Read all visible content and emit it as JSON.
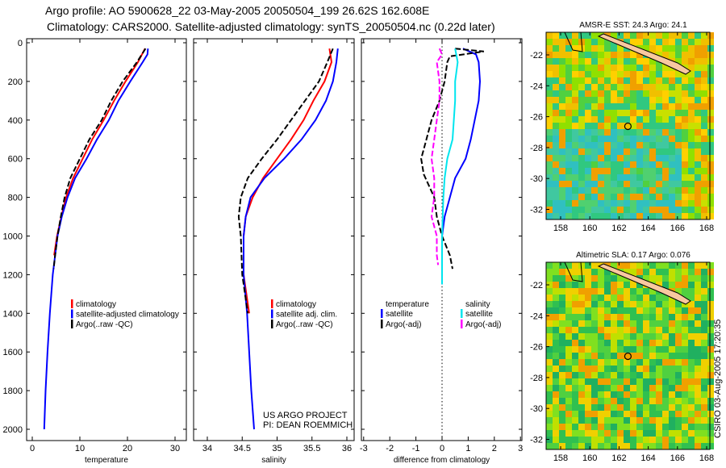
{
  "title_line1": "Argo profile: AO 5900628_22 03-May-2005 20050504_199 26.62S 162.608E",
  "title_line2": "Climatology: CARS2000. Satellite-adjusted climatology: synTS_20050504.nc (0.22d later)",
  "credit": "CSIRO 03-Aug-2005 17:20:35",
  "project_line1": "US ARGO PROJECT",
  "project_line2": "PI: DEAN ROEMMICH",
  "colors": {
    "clim": "#ff0000",
    "sat": "#0000ff",
    "argo": "#000000",
    "sal_sat": "#00e5ee",
    "sal_argo": "#ff00ff"
  },
  "chart_data": [
    {
      "type": "line",
      "xlabel": "temperature",
      "ylabel": "",
      "xlim": [
        -1,
        32
      ],
      "ylim": [
        2060,
        0
      ],
      "xticks": [
        "0",
        "10",
        "20",
        "30"
      ],
      "xtick_values": [
        0,
        10,
        20,
        30
      ],
      "yticks": [
        "0",
        "200",
        "400",
        "600",
        "800",
        "1000",
        "1200",
        "1400",
        "1600",
        "1800",
        "2000"
      ],
      "ytick_values": [
        0,
        200,
        400,
        600,
        800,
        1000,
        1200,
        1400,
        1600,
        1800,
        2000
      ],
      "legend": [
        "climatology",
        "satellite-adjusted climatology",
        "Argo(..raw -QC)"
      ],
      "series": [
        {
          "name": "climatology",
          "color": "clim",
          "dash": false,
          "depth": [
            30,
            100,
            200,
            300,
            400,
            500,
            600,
            700,
            800,
            900,
            1000,
            1100
          ],
          "values": [
            23.7,
            22.2,
            19.6,
            17.2,
            15.0,
            12.6,
            10.6,
            8.6,
            7.1,
            6.1,
            5.2,
            4.6
          ]
        },
        {
          "name": "satellite-adjusted climatology",
          "color": "sat",
          "dash": false,
          "depth": [
            30,
            60,
            100,
            200,
            300,
            400,
            500,
            600,
            700,
            800,
            900,
            1000,
            1200,
            1400,
            1600,
            1800,
            2000
          ],
          "values": [
            24.3,
            24.2,
            23.2,
            20.6,
            18.1,
            16.1,
            13.6,
            11.4,
            9.0,
            7.4,
            6.2,
            5.3,
            4.3,
            3.7,
            3.2,
            2.8,
            2.5
          ]
        },
        {
          "name": "Argo(..raw -QC)",
          "color": "argo",
          "dash": true,
          "depth": [
            30,
            100,
            200,
            300,
            400,
            500,
            600,
            700,
            800,
            900,
            1000,
            1100,
            1170
          ],
          "values": [
            23.8,
            22.0,
            19.0,
            16.6,
            14.6,
            12.0,
            10.0,
            8.0,
            6.8,
            6.0,
            5.3,
            4.8,
            4.5
          ]
        }
      ]
    },
    {
      "type": "line",
      "xlabel": "salinity",
      "xlim": [
        33.8,
        36.1
      ],
      "ylim": [
        2060,
        0
      ],
      "xticks": [
        "34",
        "34.5",
        "35",
        "35.5",
        "36"
      ],
      "xtick_values": [
        34,
        34.5,
        35,
        35.5,
        36
      ],
      "legend": [
        "climatology",
        "satellite adj. clim.",
        "Argo(..raw -QC)"
      ],
      "series": [
        {
          "name": "climatology",
          "color": "clim",
          "dash": false,
          "depth": [
            30,
            100,
            200,
            300,
            400,
            500,
            600,
            700,
            800,
            900,
            1000,
            1200,
            1400
          ],
          "values": [
            35.75,
            35.78,
            35.68,
            35.52,
            35.38,
            35.2,
            35.0,
            34.8,
            34.65,
            34.55,
            34.52,
            34.52,
            34.6
          ]
        },
        {
          "name": "satellite adj. clim.",
          "color": "sat",
          "dash": false,
          "depth": [
            30,
            100,
            200,
            300,
            400,
            500,
            600,
            700,
            800,
            900,
            1000,
            1200,
            1400,
            1600,
            1800,
            2000
          ],
          "values": [
            35.87,
            35.85,
            35.8,
            35.7,
            35.55,
            35.35,
            35.1,
            34.82,
            34.62,
            34.55,
            34.52,
            34.52,
            34.57,
            34.6,
            34.63,
            34.67
          ]
        },
        {
          "name": "Argo(..raw -QC)",
          "color": "argo",
          "dash": true,
          "depth": [
            30,
            100,
            200,
            300,
            400,
            500,
            600,
            700,
            800,
            900,
            1000,
            1200,
            1400
          ],
          "values": [
            35.8,
            35.72,
            35.6,
            35.4,
            35.2,
            35.0,
            34.78,
            34.58,
            34.48,
            34.45,
            34.48,
            34.5,
            34.58
          ]
        }
      ]
    },
    {
      "type": "line",
      "xlabel": "difference from climatology",
      "xlim": [
        -3,
        3
      ],
      "ylim": [
        2060,
        0
      ],
      "xticks": [
        "-3",
        "-2",
        "-1",
        "0",
        "1",
        "2",
        "3"
      ],
      "xtick_values": [
        -3,
        -2,
        -1,
        0,
        1,
        2,
        3
      ],
      "legend_temp": [
        "temperature",
        "satellite",
        "Argo(-adj)"
      ],
      "legend_sal": [
        "salinity",
        "satellite",
        "Argo(-adj)"
      ],
      "series": [
        {
          "name": "temperature satellite",
          "color": "sat",
          "dash": false,
          "depth": [
            30,
            60,
            100,
            200,
            300,
            400,
            500,
            600,
            700,
            800,
            900,
            1000,
            1250
          ],
          "values": [
            0.8,
            1.3,
            1.4,
            1.45,
            1.4,
            1.25,
            1.1,
            0.9,
            0.5,
            0.3,
            0.1,
            0.0,
            0.0
          ]
        },
        {
          "name": "temperature Argo(-adj)",
          "color": "argo",
          "dash": true,
          "depth": [
            30,
            45,
            70,
            100,
            200,
            300,
            400,
            500,
            600,
            680,
            800,
            900,
            1000,
            1100,
            1170
          ],
          "values": [
            0.5,
            1.6,
            0.3,
            0.2,
            0.1,
            -0.1,
            -0.4,
            -0.6,
            -0.8,
            -0.7,
            -0.3,
            -0.2,
            0.0,
            0.3,
            0.4
          ]
        },
        {
          "name": "salinity satellite",
          "color": "sal_sat",
          "dash": false,
          "depth": [
            30,
            100,
            200,
            300,
            400,
            500,
            600,
            700,
            800,
            1000,
            1250
          ],
          "values": [
            0.5,
            0.6,
            0.5,
            0.5,
            0.45,
            0.4,
            0.2,
            0.1,
            0.05,
            0.0,
            0.0
          ]
        },
        {
          "name": "salinity Argo(-adj)",
          "color": "sal_argo",
          "dash": true,
          "depth": [
            30,
            60,
            100,
            200,
            300,
            400,
            500,
            600,
            700,
            800,
            900,
            1000,
            1100,
            1150
          ],
          "values": [
            -0.1,
            0.0,
            -0.2,
            -0.1,
            -0.1,
            -0.2,
            -0.3,
            -0.4,
            -0.3,
            -0.3,
            -0.4,
            -0.2,
            -0.2,
            -0.15
          ]
        }
      ]
    },
    {
      "type": "heatmap",
      "title": "AMSR-E SST: 24.3 Argo: 24.1",
      "xticks": [
        "158",
        "160",
        "162",
        "164",
        "166",
        "168"
      ],
      "yticks": [
        "-22",
        "-24",
        "-26",
        "-28",
        "-30",
        "-32"
      ],
      "xlim": [
        157,
        168.3
      ],
      "ylim": [
        -32.6,
        -20.6
      ],
      "argo_position": [
        162.608,
        -26.62
      ]
    },
    {
      "type": "heatmap",
      "title": "Altimetric SLA: 0.17 Argo: 0.076",
      "xticks": [
        "158",
        "160",
        "162",
        "164",
        "166",
        "168"
      ],
      "yticks": [
        "-22",
        "-24",
        "-26",
        "-28",
        "-30",
        "-32"
      ],
      "xlim": [
        157,
        168.3
      ],
      "ylim": [
        -32.6,
        -20.6
      ],
      "argo_position": [
        162.608,
        -26.62
      ]
    }
  ]
}
